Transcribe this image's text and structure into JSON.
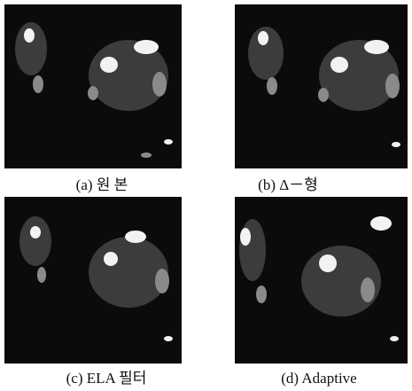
{
  "panels": [
    {
      "caption": "(a) 원 본"
    },
    {
      "caption": "(b) Δ－형"
    },
    {
      "caption": "(c) ELA 필터"
    },
    {
      "caption": "(d) Adaptive"
    }
  ]
}
